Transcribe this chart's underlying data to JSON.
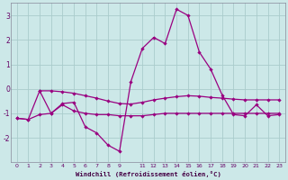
{
  "xlabel": "Windchill (Refroidissement éolien,°C)",
  "bg_color": "#cce8e8",
  "grid_color": "#aacccc",
  "line_color": "#990080",
  "series1_x": [
    0,
    1,
    2,
    3,
    4,
    5,
    6,
    7,
    8,
    9,
    10,
    11,
    12,
    13,
    14,
    15,
    16,
    17,
    18,
    19,
    20,
    21,
    22,
    23
  ],
  "series1_y": [
    -1.2,
    -1.25,
    -0.08,
    -1.0,
    -0.6,
    -0.55,
    -1.55,
    -1.8,
    -2.3,
    -2.55,
    0.3,
    1.65,
    2.1,
    1.85,
    3.25,
    3.0,
    1.5,
    0.8,
    -0.25,
    -1.05,
    -1.1,
    -0.65,
    -1.1,
    -1.05
  ],
  "series2_x": [
    2,
    3,
    4,
    5,
    6,
    7,
    8,
    9,
    10,
    11,
    12,
    13,
    14,
    15,
    16,
    17,
    18,
    19,
    20,
    21,
    22,
    23
  ],
  "series2_y": [
    -0.08,
    -0.08,
    -0.12,
    -0.18,
    -0.28,
    -0.38,
    -0.5,
    -0.6,
    -0.62,
    -0.55,
    -0.45,
    -0.38,
    -0.32,
    -0.28,
    -0.3,
    -0.35,
    -0.38,
    -0.42,
    -0.45,
    -0.45,
    -0.45,
    -0.45
  ],
  "series3_x": [
    0,
    1,
    2,
    3,
    4,
    5,
    6,
    7,
    8,
    9,
    10,
    11,
    12,
    13,
    14,
    15,
    16,
    17,
    18,
    19,
    20,
    21,
    22,
    23
  ],
  "series3_y": [
    -1.2,
    -1.25,
    -1.05,
    -1.0,
    -0.65,
    -0.9,
    -1.0,
    -1.05,
    -1.05,
    -1.1,
    -1.1,
    -1.1,
    -1.05,
    -1.0,
    -1.0,
    -1.0,
    -1.0,
    -1.0,
    -1.0,
    -1.0,
    -1.0,
    -1.0,
    -1.0,
    -1.0
  ],
  "ylim": [
    -3.0,
    3.5
  ],
  "xlim": [
    -0.5,
    23.5
  ],
  "yticks": [
    -2,
    -1,
    0,
    1,
    2,
    3
  ],
  "xtick_positions": [
    0,
    1,
    2,
    3,
    4,
    5,
    6,
    7,
    8,
    9,
    11,
    12,
    13,
    14,
    15,
    16,
    17,
    18,
    19,
    20,
    21,
    22,
    23
  ],
  "xtick_labels": [
    "0",
    "1",
    "2",
    "3",
    "4",
    "5",
    "6",
    "7",
    "8",
    "9",
    "11",
    "12",
    "13",
    "14",
    "15",
    "16",
    "17",
    "18",
    "19",
    "20",
    "21",
    "22",
    "23"
  ]
}
